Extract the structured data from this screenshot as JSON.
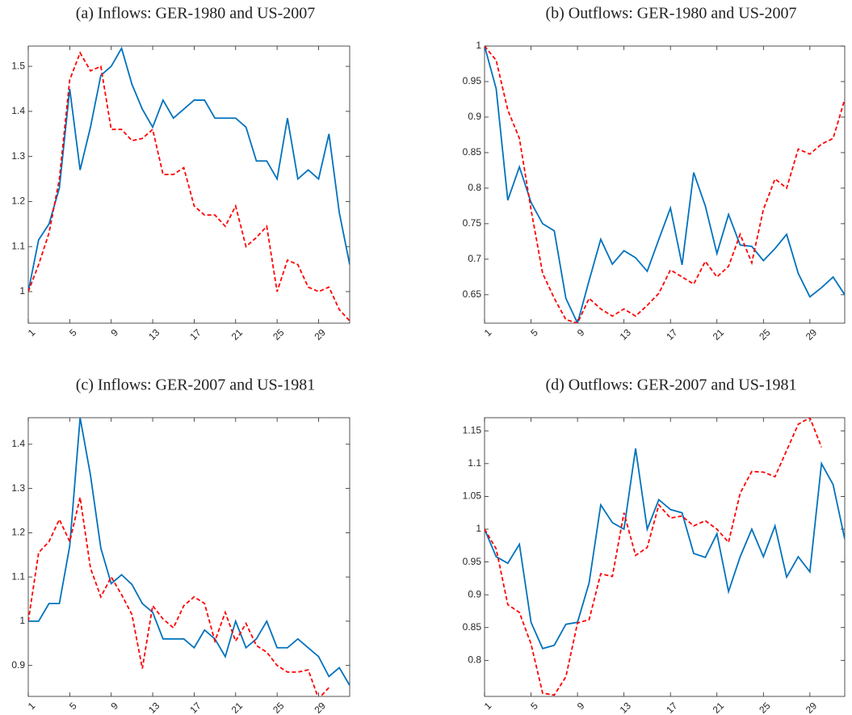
{
  "chart_data": [
    {
      "type": "line",
      "title": "(a)  Inflows: GER-1980 and US-2007",
      "x": [
        1,
        2,
        3,
        4,
        5,
        6,
        7,
        8,
        9,
        10,
        11,
        12,
        13,
        14,
        15,
        16,
        17,
        18,
        19,
        20,
        21,
        22,
        23,
        24,
        25,
        26,
        27,
        28,
        29,
        30,
        31,
        32
      ],
      "xlim": [
        1,
        32
      ],
      "xticks": [
        1,
        5,
        9,
        13,
        17,
        21,
        25,
        29
      ],
      "ylim": [
        0.93,
        1.545
      ],
      "yticks": [
        1,
        1.1,
        1.2,
        1.3,
        1.4,
        1.5
      ],
      "series": [
        {
          "color": "#0072bd",
          "dashed": false,
          "values": [
            1.0,
            1.115,
            1.15,
            1.23,
            1.45,
            1.27,
            1.365,
            1.48,
            1.5,
            1.54,
            1.46,
            1.405,
            1.365,
            1.425,
            1.385,
            1.405,
            1.425,
            1.425,
            1.385,
            1.385,
            1.385,
            1.365,
            1.29,
            1.29,
            1.25,
            1.385,
            1.25,
            1.27,
            1.25,
            1.35,
            1.175,
            1.06
          ]
        },
        {
          "color": "#ff0000",
          "dashed": true,
          "values": [
            1.0,
            1.06,
            1.13,
            1.25,
            1.47,
            1.53,
            1.49,
            1.5,
            1.36,
            1.36,
            1.335,
            1.34,
            1.36,
            1.26,
            1.26,
            1.275,
            1.19,
            1.17,
            1.17,
            1.145,
            1.19,
            1.1,
            1.12,
            1.145,
            1.0,
            1.07,
            1.06,
            1.01,
            1.0,
            1.01,
            0.96,
            0.935
          ]
        }
      ]
    },
    {
      "type": "line",
      "title": "(b)  Outflows: GER-1980 and US-2007",
      "x": [
        1,
        2,
        3,
        4,
        5,
        6,
        7,
        8,
        9,
        10,
        11,
        12,
        13,
        14,
        15,
        16,
        17,
        18,
        19,
        20,
        21,
        22,
        23,
        24,
        25,
        26,
        27,
        28,
        29,
        30,
        31,
        32
      ],
      "xlim": [
        1,
        32
      ],
      "xticks": [
        1,
        5,
        9,
        13,
        17,
        21,
        25,
        29
      ],
      "ylim": [
        0.61,
        1.0
      ],
      "yticks": [
        0.65,
        0.7,
        0.75,
        0.8,
        0.85,
        0.9,
        0.95,
        1
      ],
      "series": [
        {
          "color": "#0072bd",
          "dashed": false,
          "values": [
            1.0,
            0.94,
            0.783,
            0.83,
            0.78,
            0.75,
            0.74,
            0.645,
            0.61,
            0.67,
            0.728,
            0.693,
            0.712,
            0.702,
            0.683,
            0.728,
            0.772,
            0.692,
            0.822,
            0.775,
            0.708,
            0.763,
            0.72,
            0.718,
            0.698,
            0.715,
            0.735,
            0.68,
            0.647,
            0.66,
            0.675,
            0.65
          ]
        },
        {
          "color": "#ff0000",
          "dashed": true,
          "values": [
            1.0,
            0.98,
            0.91,
            0.87,
            0.77,
            0.68,
            0.645,
            0.615,
            0.61,
            0.645,
            0.63,
            0.62,
            0.63,
            0.62,
            0.635,
            0.652,
            0.685,
            0.675,
            0.665,
            0.697,
            0.675,
            0.69,
            0.735,
            0.695,
            0.77,
            0.813,
            0.8,
            0.855,
            0.848,
            0.862,
            0.87,
            0.925
          ]
        }
      ]
    },
    {
      "type": "line",
      "title": "(c)  Inflows: GER-2007 and US-1981",
      "x": [
        1,
        2,
        3,
        4,
        5,
        6,
        7,
        8,
        9,
        10,
        11,
        12,
        13,
        14,
        15,
        16,
        17,
        18,
        19,
        20,
        21,
        22,
        23,
        24,
        25,
        26,
        27,
        28,
        29,
        30,
        31,
        32
      ],
      "xlim": [
        1,
        32
      ],
      "xticks": [
        1,
        5,
        9,
        13,
        17,
        21,
        25,
        29
      ],
      "ylim": [
        0.83,
        1.46
      ],
      "yticks": [
        0.9,
        1,
        1.1,
        1.2,
        1.3,
        1.4
      ],
      "series": [
        {
          "color": "#0072bd",
          "dashed": false,
          "values": [
            1.0,
            1.0,
            1.04,
            1.04,
            1.17,
            1.46,
            1.33,
            1.165,
            1.085,
            1.105,
            1.083,
            1.04,
            1.02,
            0.96,
            0.96,
            0.96,
            0.94,
            0.98,
            0.96,
            0.92,
            1.0,
            0.94,
            0.96,
            1.0,
            0.94,
            0.94,
            0.96,
            0.94,
            0.92,
            0.875,
            0.895,
            0.855
          ]
        },
        {
          "color": "#ff0000",
          "dashed": true,
          "values": [
            1.0,
            1.155,
            1.18,
            1.23,
            1.18,
            1.28,
            1.12,
            1.055,
            1.1,
            1.06,
            1.015,
            0.893,
            1.035,
            1.005,
            0.985,
            1.035,
            1.055,
            1.04,
            0.955,
            1.02,
            0.955,
            0.995,
            0.945,
            0.93,
            0.9,
            0.885,
            0.885,
            0.89,
            0.825,
            0.85,
            null,
            null
          ]
        }
      ]
    },
    {
      "type": "line",
      "title": "(d)  Outflows: GER-2007 and US-1981",
      "x": [
        1,
        2,
        3,
        4,
        5,
        6,
        7,
        8,
        9,
        10,
        11,
        12,
        13,
        14,
        15,
        16,
        17,
        18,
        19,
        20,
        21,
        22,
        23,
        24,
        25,
        26,
        27,
        28,
        29,
        30,
        31,
        32
      ],
      "xlim": [
        1,
        32
      ],
      "xticks": [
        1,
        5,
        9,
        13,
        17,
        21,
        25,
        29
      ],
      "ylim": [
        0.745,
        1.17
      ],
      "yticks": [
        0.8,
        0.85,
        0.9,
        0.95,
        1,
        1.05,
        1.1,
        1.15
      ],
      "series": [
        {
          "color": "#0072bd",
          "dashed": false,
          "values": [
            1.0,
            0.958,
            0.948,
            0.977,
            0.858,
            0.818,
            0.823,
            0.855,
            0.858,
            0.918,
            1.037,
            1.01,
            1.0,
            1.123,
            1.0,
            1.045,
            1.03,
            1.025,
            0.963,
            0.957,
            0.993,
            0.905,
            0.958,
            1.0,
            0.958,
            1.005,
            0.927,
            0.958,
            0.935,
            1.1,
            1.068,
            0.985
          ]
        },
        {
          "color": "#ff0000",
          "dashed": true,
          "values": [
            1.0,
            0.97,
            0.885,
            0.873,
            0.825,
            0.75,
            0.747,
            0.775,
            0.857,
            0.862,
            0.932,
            0.928,
            1.025,
            0.96,
            0.972,
            1.037,
            1.017,
            1.02,
            1.005,
            1.013,
            1.0,
            0.98,
            1.055,
            1.088,
            1.087,
            1.08,
            1.12,
            1.16,
            1.17,
            1.125,
            null,
            null
          ]
        }
      ]
    }
  ]
}
